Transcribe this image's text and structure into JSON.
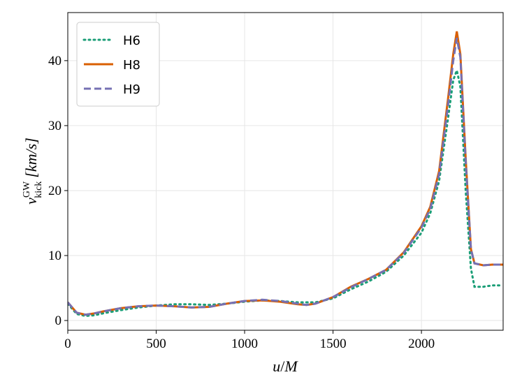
{
  "chart_data": {
    "type": "line",
    "x_label": {
      "symbol": "u",
      "unit": "M"
    },
    "y_label": {
      "symbol": "v",
      "superscript": "GW",
      "subscript": "kick",
      "unit": "[km/s]"
    },
    "x": [
      0,
      25,
      50,
      100,
      150,
      200,
      300,
      400,
      500,
      600,
      700,
      800,
      900,
      1000,
      1100,
      1200,
      1300,
      1350,
      1400,
      1500,
      1600,
      1700,
      1800,
      1900,
      2000,
      2050,
      2100,
      2150,
      2180,
      2200,
      2220,
      2250,
      2280,
      2300,
      2350,
      2400,
      2460
    ],
    "series": [
      {
        "name": "H6",
        "color": "#1b9e77",
        "dash": "dotted",
        "values": [
          2.6,
          1.8,
          1.0,
          0.7,
          0.8,
          1.1,
          1.6,
          2.0,
          2.3,
          2.5,
          2.5,
          2.4,
          2.6,
          2.9,
          3.1,
          3.0,
          2.8,
          2.8,
          2.8,
          3.4,
          4.8,
          6.0,
          7.5,
          10.0,
          13.5,
          16.5,
          21.5,
          31,
          37,
          38.5,
          36,
          20,
          8,
          5.2,
          5.2,
          5.4,
          5.4
        ]
      },
      {
        "name": "H8",
        "color": "#d95f02",
        "dash": "solid",
        "values": [
          2.8,
          2.0,
          1.2,
          0.9,
          1.1,
          1.4,
          1.9,
          2.2,
          2.3,
          2.2,
          2.0,
          2.1,
          2.6,
          3.0,
          3.1,
          2.9,
          2.5,
          2.4,
          2.6,
          3.6,
          5.2,
          6.4,
          7.8,
          10.5,
          14.5,
          17.5,
          23,
          34,
          41,
          44.5,
          41,
          25,
          11,
          8.8,
          8.5,
          8.6,
          8.6
        ]
      },
      {
        "name": "H9",
        "color": "#7570b3",
        "dash": "dashed",
        "values": [
          2.8,
          2.0,
          1.2,
          0.9,
          1.1,
          1.4,
          1.9,
          2.2,
          2.3,
          2.2,
          2.0,
          2.1,
          2.6,
          3.0,
          3.2,
          3.0,
          2.6,
          2.4,
          2.6,
          3.6,
          5.1,
          6.4,
          7.8,
          10.4,
          14.3,
          17.2,
          22.5,
          33,
          40,
          43.5,
          40.5,
          24.5,
          11,
          8.8,
          8.5,
          8.6,
          8.6
        ]
      }
    ],
    "xlim": [
      0,
      2462
    ],
    "ylim": [
      -1.5,
      47.4
    ],
    "xticks": [
      0,
      500,
      1000,
      1500,
      2000
    ],
    "yticks": [
      0,
      10,
      20,
      30,
      40
    ],
    "grid": true,
    "legend": "upper-left"
  }
}
